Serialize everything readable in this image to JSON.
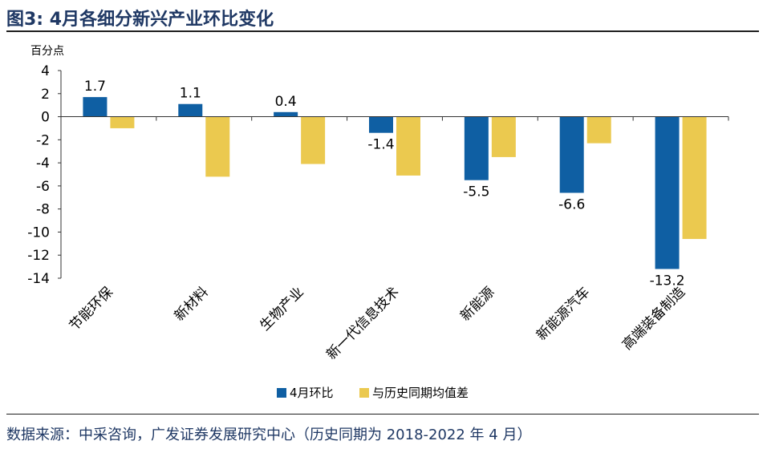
{
  "figure_title": "图3:  4月各细分新兴产业环比变化",
  "source_note": "数据来源：中采咨询，广发证券发展研究中心（历史同期为 2018-2022 年 4 月）",
  "colors": {
    "series_1": "#0f5fa3",
    "series_2": "#ebc94f",
    "title": "#1f3864"
  },
  "chart_data": {
    "type": "bar",
    "title": "",
    "xlabel": "",
    "ylabel": "百分点",
    "ylim": [
      -14,
      4
    ],
    "yticks": [
      4,
      2,
      0,
      -2,
      -4,
      -6,
      -8,
      -10,
      -12,
      -14
    ],
    "grid": false,
    "legend_position": "bottom",
    "categories": [
      "节能环保",
      "新材料",
      "生物产业",
      "新一代信息技术",
      "新能源",
      "新能源汽车",
      "高端装备制造"
    ],
    "series": [
      {
        "name": "4月环比",
        "values": [
          1.7,
          1.1,
          0.4,
          -1.4,
          -5.5,
          -6.6,
          -13.2
        ],
        "data_labels": [
          "1.7",
          "1.1",
          "0.4",
          "-1.4",
          "-5.5",
          "-6.6",
          "-13.2"
        ]
      },
      {
        "name": "与历史同期均值差",
        "values": [
          -1.0,
          -5.2,
          -4.1,
          -5.1,
          -3.5,
          -2.3,
          -10.6
        ]
      }
    ]
  }
}
